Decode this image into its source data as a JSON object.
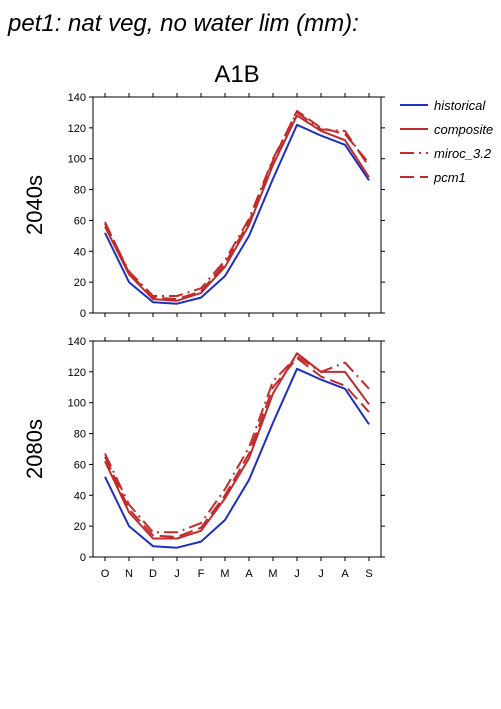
{
  "page_title": "pet1: nat veg, no water lim (mm):",
  "colors": {
    "historical": "#1f2fbf",
    "future": "#c22b2b"
  },
  "chart_data": [
    {
      "type": "line",
      "title": "A1B",
      "ylabel": "2040s",
      "xlabel": "",
      "categories": [
        "O",
        "N",
        "D",
        "J",
        "F",
        "M",
        "A",
        "M",
        "J",
        "J",
        "A",
        "S"
      ],
      "yticks": [
        0,
        20,
        40,
        60,
        80,
        100,
        120,
        140
      ],
      "ylim": [
        0,
        140
      ],
      "grid": false,
      "legend": "right",
      "series": [
        {
          "name": "historical",
          "color": "#1f2fbf",
          "dash": "solid",
          "values": [
            52,
            20,
            7,
            6,
            10,
            24,
            50,
            87,
            122,
            115,
            109,
            86
          ]
        },
        {
          "name": "composite",
          "color": "#c22b2b",
          "dash": "solid",
          "values": [
            56,
            25,
            9,
            8,
            13,
            30,
            57,
            96,
            128,
            118,
            112,
            88
          ]
        },
        {
          "name": "miroc_3.2",
          "color": "#c22b2b",
          "dash": "dashdot",
          "values": [
            58,
            27,
            11,
            11,
            16,
            34,
            61,
            100,
            130,
            119,
            118,
            95
          ]
        },
        {
          "name": "pcm1",
          "color": "#c22b2b",
          "dash": "dashed",
          "values": [
            59,
            26,
            10,
            9,
            14,
            32,
            59,
            99,
            131,
            120,
            116,
            97
          ]
        }
      ]
    },
    {
      "type": "line",
      "ylabel": "2080s",
      "xlabel": "",
      "categories": [
        "O",
        "N",
        "D",
        "J",
        "F",
        "M",
        "A",
        "M",
        "J",
        "J",
        "A",
        "S"
      ],
      "yticks": [
        0,
        20,
        40,
        60,
        80,
        100,
        120,
        140
      ],
      "ylim": [
        0,
        140
      ],
      "grid": false,
      "series": [
        {
          "name": "historical",
          "color": "#1f2fbf",
          "dash": "solid",
          "values": [
            52,
            20,
            7,
            6,
            10,
            24,
            50,
            87,
            122,
            115,
            109,
            86
          ]
        },
        {
          "name": "composite",
          "color": "#c22b2b",
          "dash": "solid",
          "values": [
            62,
            29,
            12,
            12,
            17,
            38,
            64,
            106,
            132,
            120,
            120,
            99
          ]
        },
        {
          "name": "miroc_3.2",
          "color": "#c22b2b",
          "dash": "dashdot",
          "values": [
            67,
            34,
            16,
            16,
            22,
            44,
            71,
            114,
            130,
            120,
            126,
            109
          ]
        },
        {
          "name": "pcm1",
          "color": "#c22b2b",
          "dash": "dashed",
          "values": [
            65,
            31,
            14,
            13,
            19,
            40,
            67,
            110,
            129,
            117,
            111,
            94
          ]
        }
      ]
    }
  ]
}
